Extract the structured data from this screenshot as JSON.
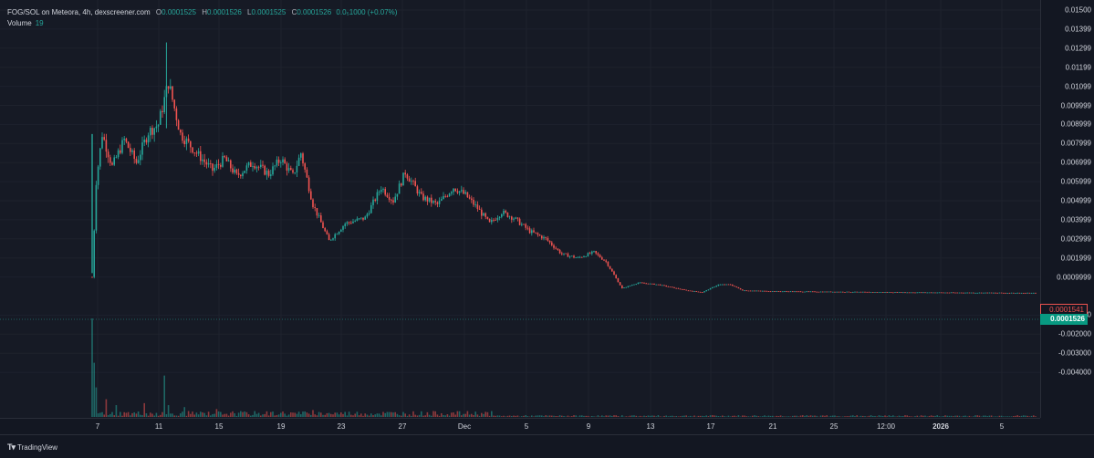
{
  "header": {
    "symbol": "FOG/SOL on Meteora, 4h, dexscreener.com",
    "open_label": "O",
    "open": "0.0001525",
    "high_label": "H",
    "high": "0.0001526",
    "low_label": "L",
    "low": "0.0001525",
    "close_label": "C",
    "close": "0.0001526",
    "change": "0.0₅1000 (+0.07%)"
  },
  "volume_legend": {
    "label": "Volume",
    "value": "19"
  },
  "price_axis": {
    "ticks": [
      {
        "label": "0.01500",
        "value": 0.015
      },
      {
        "label": "0.01399",
        "value": 0.014
      },
      {
        "label": "0.01299",
        "value": 0.013
      },
      {
        "label": "0.01199",
        "value": 0.012
      },
      {
        "label": "0.01099",
        "value": 0.011
      },
      {
        "label": "0.009999",
        "value": 0.01
      },
      {
        "label": "0.008999",
        "value": 0.009
      },
      {
        "label": "0.007999",
        "value": 0.008
      },
      {
        "label": "0.006999",
        "value": 0.007
      },
      {
        "label": "0.005999",
        "value": 0.006
      },
      {
        "label": "0.004999",
        "value": 0.005
      },
      {
        "label": "0.003999",
        "value": 0.004
      },
      {
        "label": "0.002999",
        "value": 0.003
      },
      {
        "label": "0.001999",
        "value": 0.002
      },
      {
        "label": "0.0009999",
        "value": 0.001
      },
      {
        "label": "-0.001000",
        "value": -0.001
      },
      {
        "label": "-0.002000",
        "value": -0.002
      },
      {
        "label": "-0.003000",
        "value": -0.003
      },
      {
        "label": "-0.004000",
        "value": -0.004
      }
    ],
    "last_price_red": "0.0001541",
    "last_price_green": "0.0001526"
  },
  "time_axis": {
    "ticks": [
      {
        "label": "7",
        "bold": false
      },
      {
        "label": "11",
        "bold": false
      },
      {
        "label": "15",
        "bold": false
      },
      {
        "label": "19",
        "bold": false
      },
      {
        "label": "23",
        "bold": false
      },
      {
        "label": "27",
        "bold": false
      },
      {
        "label": "Dec",
        "bold": false
      },
      {
        "label": "5",
        "bold": false
      },
      {
        "label": "9",
        "bold": false
      },
      {
        "label": "13",
        "bold": false
      },
      {
        "label": "17",
        "bold": false
      },
      {
        "label": "21",
        "bold": false
      },
      {
        "label": "25",
        "bold": false
      },
      {
        "label": "12:00",
        "bold": false
      },
      {
        "label": "2026",
        "bold": true
      },
      {
        "label": "5",
        "bold": false
      }
    ]
  },
  "footer": {
    "brand": "TradingView",
    "logo_icon": "tradingview-logo-icon"
  },
  "colors": {
    "up": "#26a69a",
    "down": "#ef5350",
    "grid": "#1f2430",
    "bg": "#161a25"
  },
  "chart_data": {
    "type": "candlestick",
    "price_range": [
      -0.0045,
      0.0152
    ],
    "grid": true,
    "price_anchors": [
      {
        "x": 0,
        "p": 0.001
      },
      {
        "x": 2,
        "p": 0.006
      },
      {
        "x": 5,
        "p": 0.0085
      },
      {
        "x": 10,
        "p": 0.0068
      },
      {
        "x": 16,
        "p": 0.0082
      },
      {
        "x": 22,
        "p": 0.007
      },
      {
        "x": 28,
        "p": 0.0086
      },
      {
        "x": 33,
        "p": 0.009
      },
      {
        "x": 38,
        "p": 0.0112
      },
      {
        "x": 44,
        "p": 0.0085
      },
      {
        "x": 52,
        "p": 0.0075
      },
      {
        "x": 60,
        "p": 0.0066
      },
      {
        "x": 66,
        "p": 0.0072
      },
      {
        "x": 72,
        "p": 0.0063
      },
      {
        "x": 80,
        "p": 0.007
      },
      {
        "x": 88,
        "p": 0.0064
      },
      {
        "x": 94,
        "p": 0.0072
      },
      {
        "x": 100,
        "p": 0.0063
      },
      {
        "x": 104,
        "p": 0.0075
      },
      {
        "x": 110,
        "p": 0.0048
      },
      {
        "x": 118,
        "p": 0.0029
      },
      {
        "x": 126,
        "p": 0.0038
      },
      {
        "x": 136,
        "p": 0.0041
      },
      {
        "x": 144,
        "p": 0.0057
      },
      {
        "x": 150,
        "p": 0.005
      },
      {
        "x": 156,
        "p": 0.0065
      },
      {
        "x": 164,
        "p": 0.0052
      },
      {
        "x": 172,
        "p": 0.0048
      },
      {
        "x": 180,
        "p": 0.0057
      },
      {
        "x": 186,
        "p": 0.0053
      },
      {
        "x": 192,
        "p": 0.0046
      },
      {
        "x": 198,
        "p": 0.0038
      },
      {
        "x": 204,
        "p": 0.0044
      },
      {
        "x": 210,
        "p": 0.0041
      },
      {
        "x": 218,
        "p": 0.0034
      },
      {
        "x": 226,
        "p": 0.003
      },
      {
        "x": 234,
        "p": 0.0022
      },
      {
        "x": 242,
        "p": 0.002
      },
      {
        "x": 250,
        "p": 0.0023
      },
      {
        "x": 256,
        "p": 0.0018
      },
      {
        "x": 264,
        "p": 0.0004
      },
      {
        "x": 272,
        "p": 0.0007
      },
      {
        "x": 282,
        "p": 0.0006
      },
      {
        "x": 296,
        "p": 0.0003
      },
      {
        "x": 304,
        "p": 0.0002
      },
      {
        "x": 312,
        "p": 0.0006
      },
      {
        "x": 318,
        "p": 0.0006
      },
      {
        "x": 324,
        "p": 0.0003
      },
      {
        "x": 340,
        "p": 0.00025
      },
      {
        "x": 400,
        "p": 0.0002
      },
      {
        "x": 470,
        "p": 0.00016
      }
    ],
    "volume_spikes": [
      {
        "x": 0,
        "v": 100
      },
      {
        "x": 1,
        "v": 55
      },
      {
        "x": 2,
        "v": 30
      },
      {
        "x": 7,
        "v": 18
      },
      {
        "x": 12,
        "v": 12
      },
      {
        "x": 26,
        "v": 14
      },
      {
        "x": 36,
        "v": 42
      },
      {
        "x": 38,
        "v": 12
      },
      {
        "x": 46,
        "v": 10
      },
      {
        "x": 62,
        "v": 8
      },
      {
        "x": 110,
        "v": 7
      }
    ]
  }
}
